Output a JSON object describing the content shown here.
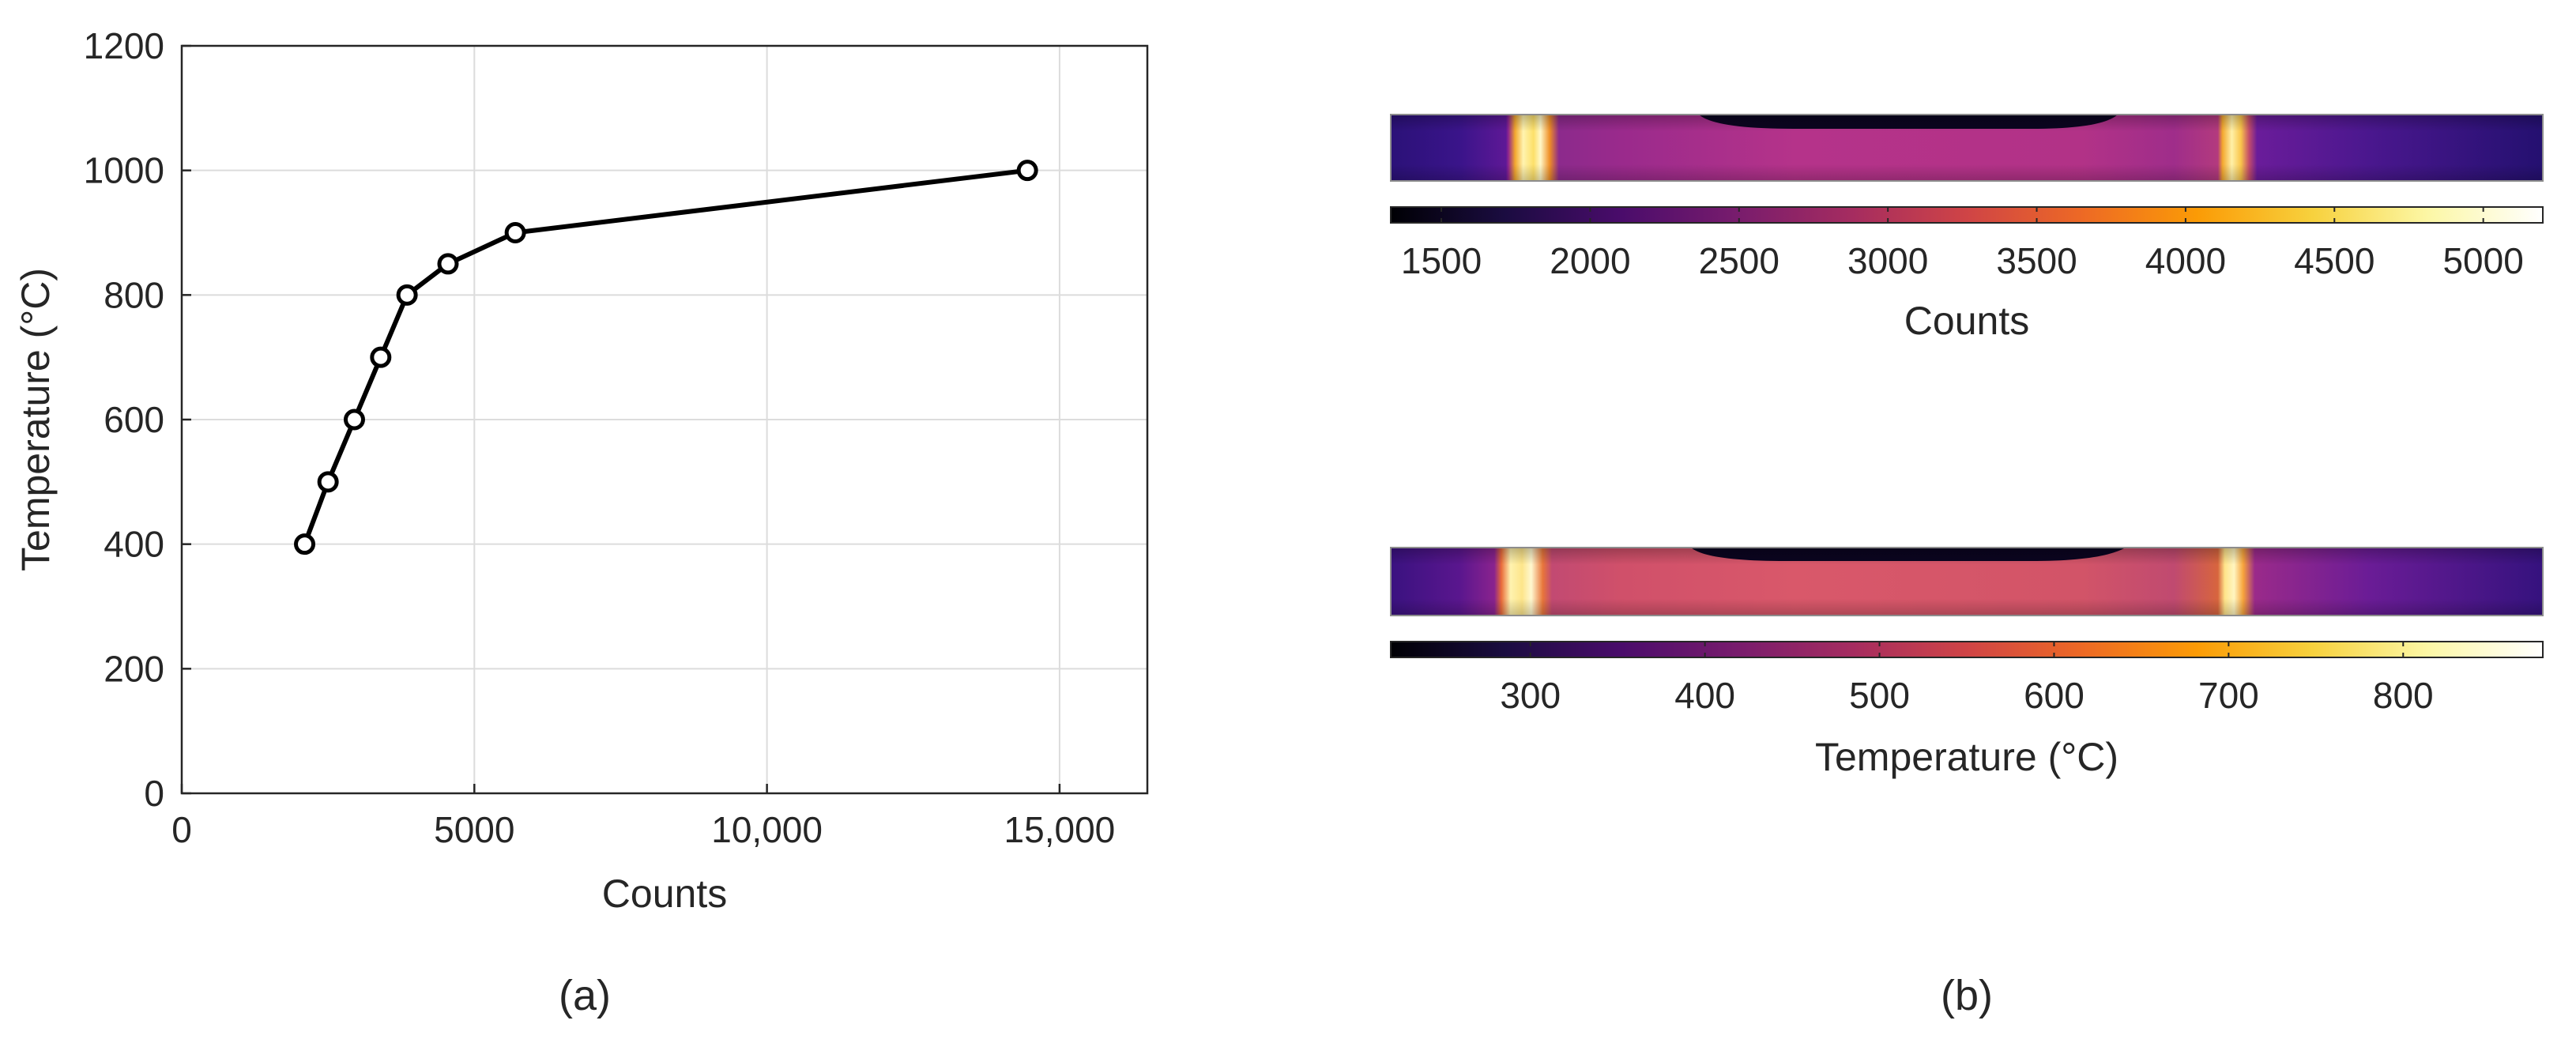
{
  "figure": {
    "panel_a_label": "(a)",
    "panel_b_label": "(b)"
  },
  "chart_data": [
    {
      "type": "line",
      "title": "",
      "xlabel": "Counts",
      "ylabel": "Temperature (°C)",
      "xlim": [
        0,
        16500
      ],
      "ylim": [
        0,
        1200
      ],
      "xticks": [
        0,
        5000,
        10000,
        15000
      ],
      "xtick_labels": [
        "0",
        "5000",
        "10,000",
        "15,000"
      ],
      "yticks": [
        0,
        200,
        400,
        600,
        800,
        1000,
        1200
      ],
      "ytick_labels": [
        "0",
        "200",
        "400",
        "600",
        "800",
        "1000",
        "1200"
      ],
      "grid": true,
      "x": [
        2100,
        2500,
        2950,
        3400,
        3850,
        4550,
        5700,
        14450
      ],
      "y": [
        400,
        500,
        600,
        700,
        800,
        850,
        900,
        1000
      ],
      "line_color": "#000000",
      "marker": "circle"
    },
    {
      "type": "heatmap",
      "xlabel": "Counts",
      "colorbar_range": [
        1330,
        5200
      ],
      "colorbar_ticks": [
        1500,
        2000,
        2500,
        3000,
        3500,
        4000,
        4500,
        5000
      ],
      "colorbar_tick_labels": [
        "1500",
        "2000",
        "2500",
        "3000",
        "3500",
        "4000",
        "4500",
        "5000"
      ],
      "colormap": "inferno"
    },
    {
      "type": "heatmap",
      "xlabel": "Temperature (°C)",
      "colorbar_range": [
        220,
        880
      ],
      "colorbar_ticks": [
        300,
        400,
        500,
        600,
        700,
        800
      ],
      "colorbar_tick_labels": [
        "300",
        "400",
        "500",
        "600",
        "700",
        "800"
      ],
      "colormap": "inferno"
    }
  ]
}
